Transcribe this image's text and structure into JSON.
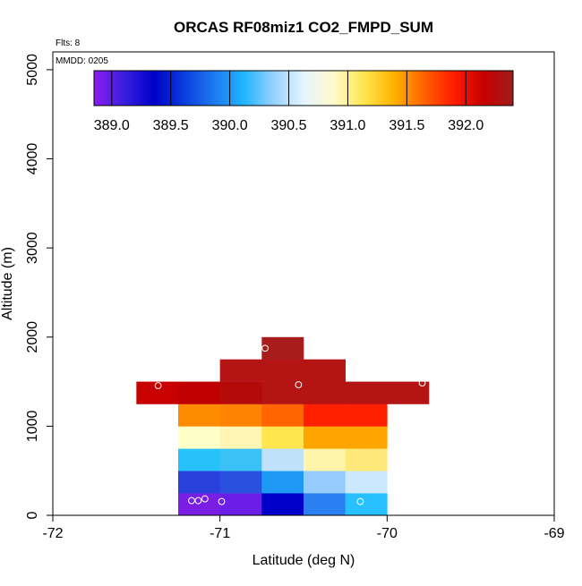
{
  "chart_data": {
    "type": "heatmap",
    "title": "ORCAS RF08miz1 CO2_FMPD_SUM",
    "flights_note": "Flts: 8",
    "date_note": "MMDD: 0205",
    "xlabel": "Latitude (deg N)",
    "ylabel": "Altitude (m)",
    "xlim": [
      -72,
      -69
    ],
    "ylim": [
      0,
      5200
    ],
    "xticks": [
      "-72",
      "-71",
      "-70",
      "-69"
    ],
    "yticks": [
      "0",
      "1000",
      "2000",
      "3000",
      "4000",
      "5000"
    ],
    "colorbar": {
      "range": [
        388.85,
        392.4
      ],
      "ticks": [
        "389.0",
        "389.5",
        "390.0",
        "390.5",
        "391.0",
        "391.5",
        "392.0"
      ],
      "stops": [
        "#8a1ef0",
        "#3a1ee0",
        "#0000c8",
        "#0a3cdc",
        "#1e78f0",
        "#20b4ff",
        "#96d2ff",
        "#e6f4ff",
        "#fffacc",
        "#ffe650",
        "#ffb400",
        "#ff6400",
        "#ff1e00",
        "#c80000",
        "#a01c1c"
      ]
    },
    "cells": [
      {
        "lat": -71.125,
        "alt": 125,
        "color": "#7a1ee6"
      },
      {
        "lat": -70.875,
        "alt": 125,
        "color": "#6a1ee6"
      },
      {
        "lat": -70.625,
        "alt": 125,
        "color": "#0000c8"
      },
      {
        "lat": -70.375,
        "alt": 125,
        "color": "#2a80f0"
      },
      {
        "lat": -70.125,
        "alt": 125,
        "color": "#28c0ff"
      },
      {
        "lat": -71.125,
        "alt": 375,
        "color": "#2840dc"
      },
      {
        "lat": -70.875,
        "alt": 375,
        "color": "#2a50e0"
      },
      {
        "lat": -70.625,
        "alt": 375,
        "color": "#1e9af5"
      },
      {
        "lat": -70.375,
        "alt": 375,
        "color": "#96ccff"
      },
      {
        "lat": -70.125,
        "alt": 375,
        "color": "#cce8ff"
      },
      {
        "lat": -71.125,
        "alt": 625,
        "color": "#28c2fa"
      },
      {
        "lat": -70.875,
        "alt": 625,
        "color": "#3ac2f6"
      },
      {
        "lat": -70.625,
        "alt": 625,
        "color": "#bfe2fa"
      },
      {
        "lat": -70.375,
        "alt": 625,
        "color": "#fff5aa"
      },
      {
        "lat": -70.125,
        "alt": 625,
        "color": "#ffe87a"
      },
      {
        "lat": -71.125,
        "alt": 875,
        "color": "#ffffc8"
      },
      {
        "lat": -70.875,
        "alt": 875,
        "color": "#fff5b4"
      },
      {
        "lat": -70.625,
        "alt": 875,
        "color": "#ffe650"
      },
      {
        "lat": -70.375,
        "alt": 875,
        "color": "#ffa500"
      },
      {
        "lat": -70.125,
        "alt": 875,
        "color": "#ffa500"
      },
      {
        "lat": -71.125,
        "alt": 1125,
        "color": "#ff8c00"
      },
      {
        "lat": -70.875,
        "alt": 1125,
        "color": "#ff8200"
      },
      {
        "lat": -70.625,
        "alt": 1125,
        "color": "#ff6400"
      },
      {
        "lat": -70.375,
        "alt": 1125,
        "color": "#ff2000"
      },
      {
        "lat": -70.125,
        "alt": 1125,
        "color": "#ff2000"
      },
      {
        "lat": -71.375,
        "alt": 1375,
        "color": "#c80000"
      },
      {
        "lat": -71.125,
        "alt": 1375,
        "color": "#c00000"
      },
      {
        "lat": -70.875,
        "alt": 1375,
        "color": "#b40a0a"
      },
      {
        "lat": -70.625,
        "alt": 1375,
        "color": "#b41414"
      },
      {
        "lat": -70.375,
        "alt": 1375,
        "color": "#b41414"
      },
      {
        "lat": -70.125,
        "alt": 1375,
        "color": "#b41414"
      },
      {
        "lat": -69.875,
        "alt": 1375,
        "color": "#b41414"
      },
      {
        "lat": -70.875,
        "alt": 1625,
        "color": "#b41414"
      },
      {
        "lat": -70.625,
        "alt": 1625,
        "color": "#b41414"
      },
      {
        "lat": -70.375,
        "alt": 1625,
        "color": "#b41414"
      },
      {
        "lat": -70.625,
        "alt": 1875,
        "color": "#a81c1c"
      }
    ],
    "points": [
      {
        "lat": -71.17,
        "alt": 165
      },
      {
        "lat": -71.13,
        "alt": 165
      },
      {
        "lat": -71.09,
        "alt": 185
      },
      {
        "lat": -70.99,
        "alt": 155
      },
      {
        "lat": -70.16,
        "alt": 155
      },
      {
        "lat": -71.37,
        "alt": 1455
      },
      {
        "lat": -70.53,
        "alt": 1465
      },
      {
        "lat": -69.79,
        "alt": 1485
      },
      {
        "lat": -70.73,
        "alt": 1875
      }
    ]
  }
}
